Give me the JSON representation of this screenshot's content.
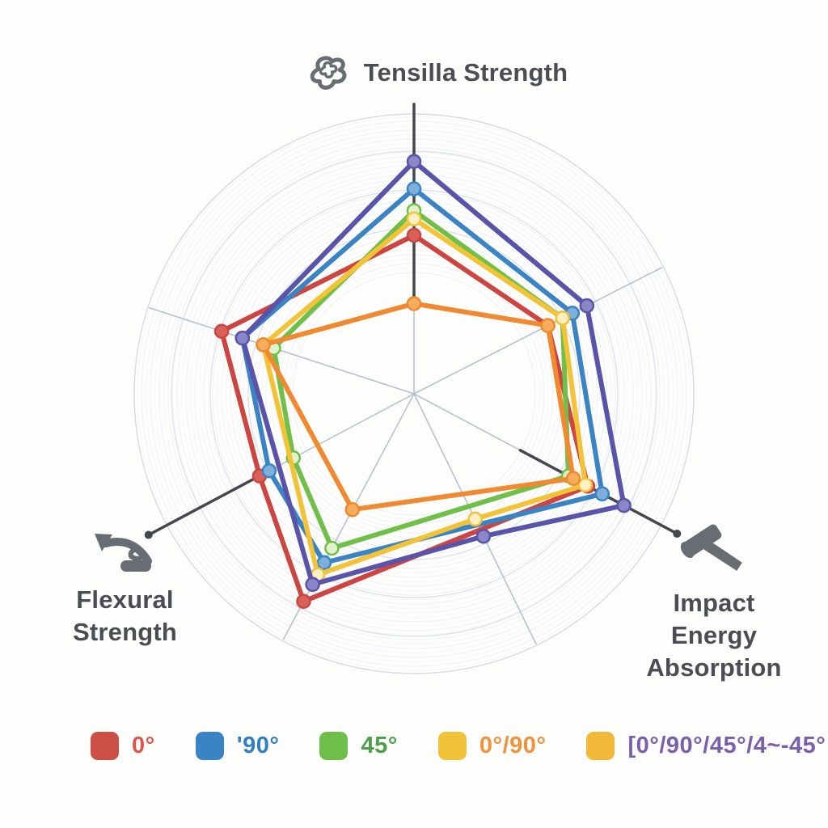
{
  "page": {
    "background": "#fdfdfb"
  },
  "chart_data": {
    "type": "radar",
    "title": "",
    "scale": {
      "min": 0,
      "max": 1,
      "grid": "concentric-circles",
      "tick_labels": "none"
    },
    "legend_position": "bottom",
    "axes": [
      {
        "id": "tensile",
        "label": "Tensilla Strength",
        "angle_deg": 90,
        "labeled": true,
        "icon": "fiber-knot-icon"
      },
      {
        "id": "upper_right",
        "label": "",
        "angle_deg": 27,
        "labeled": false,
        "icon": ""
      },
      {
        "id": "impact",
        "label": "Impact Energy Absorption",
        "angle_deg": -28,
        "labeled": true,
        "icon": "hammer-icon"
      },
      {
        "id": "down_right",
        "label": "",
        "angle_deg": -64,
        "labeled": false,
        "icon": ""
      },
      {
        "id": "down_left",
        "label": "",
        "angle_deg": -118,
        "labeled": false,
        "icon": ""
      },
      {
        "id": "flexural",
        "label": "Flexural Strength",
        "angle_deg": -152,
        "labeled": true,
        "icon": "bend-arrow-icon"
      },
      {
        "id": "upper_left",
        "label": "",
        "angle_deg": 162,
        "labeled": false,
        "icon": ""
      }
    ],
    "series": [
      {
        "name": "0°",
        "color": "#cc4540",
        "marker_fill": "#d8625a",
        "values": {
          "tensile": 0.58,
          "upper_right": 0.55,
          "impact": 0.72,
          "down_left": 0.86,
          "flexural": 0.64,
          "upper_left": 0.74
        }
      },
      {
        "name": "'90°",
        "color": "#3a83c4",
        "marker_fill": "#7fb0dc",
        "values": {
          "tensile": 0.75,
          "upper_right": 0.65,
          "impact": 0.78,
          "down_left": 0.7,
          "flexural": 0.6,
          "upper_left": 0.66
        }
      },
      {
        "name": "45°",
        "color": "#70bf48",
        "marker_fill": "#e2f2cf",
        "values": {
          "tensile": 0.67,
          "upper_right": 0.61,
          "impact": 0.64,
          "down_left": 0.64,
          "flexural": 0.5,
          "upper_left": 0.54
        }
      },
      {
        "name": "",
        "color": "#f2c237",
        "marker_fill": "#faf0c4",
        "values": {
          "tensile": 0.64,
          "upper_right": 0.61,
          "impact": 0.71,
          "down_right": 0.51,
          "down_left": 0.75,
          "upper_left": 0.58
        }
      },
      {
        "name": "0°/90°",
        "color": "#f0892f",
        "marker_fill": "#f6ad5c",
        "values": {
          "tensile": 0.33,
          "upper_right": 0.55,
          "impact": 0.66,
          "down_left": 0.48,
          "upper_left": 0.58
        }
      },
      {
        "name": "[0°/90°/45°/4~-45°",
        "color": "#5953aa",
        "marker_fill": "#8a86c8",
        "values": {
          "tensile": 0.85,
          "upper_right": 0.71,
          "impact": 0.87,
          "down_right": 0.58,
          "down_left": 0.79,
          "upper_left": 0.66
        }
      }
    ],
    "layout": {
      "center": {
        "x": 512,
        "y": 487
      },
      "radius_px": 338,
      "line_width": 6,
      "marker_radius": 8,
      "spoke_color": "#b8c1d3",
      "ripple_color": "#e9edf4",
      "major_ring_color": "#dde2ec",
      "outer_ring_color": "#d5dae7",
      "axis_color": "#44484e",
      "ripple": {
        "min": 150,
        "max": 346,
        "step": 5.5
      },
      "major_rings": [
        205,
        252,
        300,
        346
      ],
      "dark_axes": [
        {
          "angle_deg": 90,
          "r_outer": 1.06,
          "r_inner": 0.33,
          "end_dot": false
        },
        {
          "angle_deg": -152,
          "r_outer": 1.1,
          "r_inner": 0.63,
          "end_dot": true
        },
        {
          "angle_deg": -28,
          "r_outer": 1.09,
          "r_inner": 0.44,
          "end_dot": true
        }
      ]
    }
  },
  "legend": {
    "items": [
      {
        "label": "0°",
        "swatch": "#cc4f45",
        "text_color": "#d9574b"
      },
      {
        "label": "'90°",
        "swatch": "#3a83c4",
        "text_color": "#2f7fc4"
      },
      {
        "label": "45°",
        "swatch": "#6dbf49",
        "text_color": "#4ca04c"
      },
      {
        "label": "0°/90°",
        "swatch": "#f2c13a",
        "text_color": "#f0913b"
      },
      {
        "label": "[0°/90°/45°/4~-45°",
        "swatch": "#f2b838",
        "text_color": "#7a5fae"
      }
    ]
  }
}
